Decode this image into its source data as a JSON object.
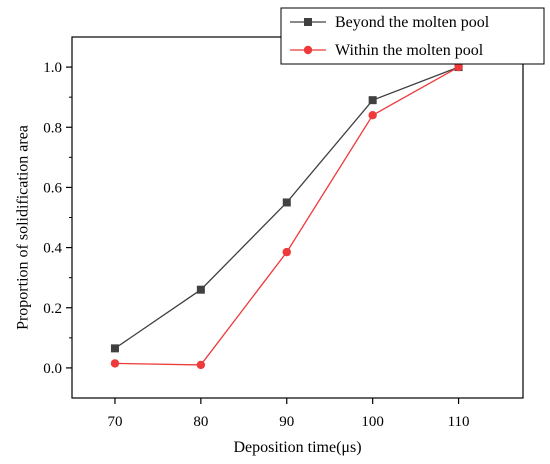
{
  "chart_data": {
    "type": "line",
    "xlabel": "Deposition time(μs)",
    "ylabel": "Proportion of solidification area",
    "x": [
      70,
      80,
      90,
      100,
      110
    ],
    "x_ticks": [
      "70",
      "80",
      "90",
      "100",
      "110"
    ],
    "y_ticks": [
      "0.0",
      "0.2",
      "0.4",
      "0.6",
      "0.8",
      "1.0"
    ],
    "xlim": [
      65,
      117.5
    ],
    "ylim": [
      -0.1,
      1.1
    ],
    "grid": false,
    "legend_position": "top-right",
    "series": [
      {
        "name": "Beyond the molten pool",
        "color": "#404040",
        "marker": "square",
        "values": [
          0.065,
          0.26,
          0.55,
          0.89,
          1.0
        ]
      },
      {
        "name": "Within the molten pool",
        "color": "#ee3a3a",
        "marker": "circle",
        "values": [
          0.015,
          0.01,
          0.385,
          0.84,
          1.0
        ]
      }
    ]
  }
}
